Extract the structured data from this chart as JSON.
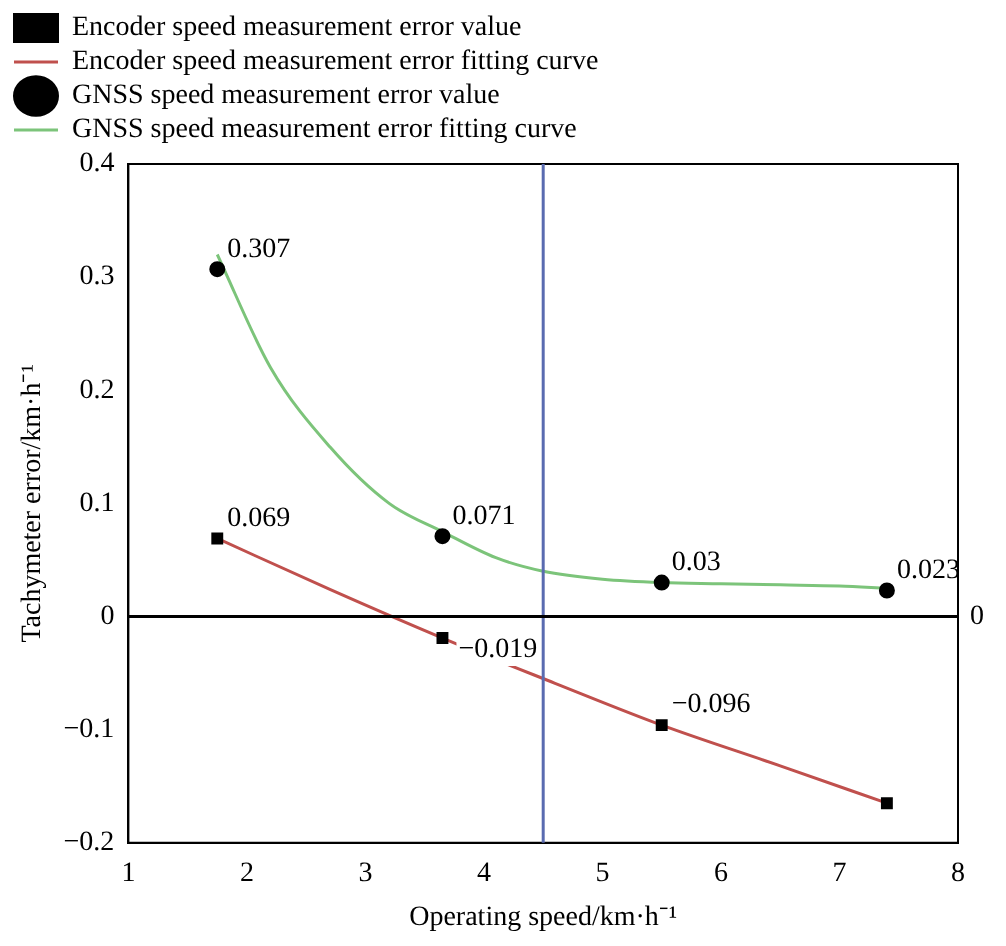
{
  "chart_data": {
    "type": "scatter",
    "xlabel": "Operating speed/km·h⁻¹",
    "ylabel": "Tachymeter error/km·h⁻¹",
    "xlim": [
      1,
      8
    ],
    "xticks": [
      1,
      2,
      3,
      4,
      5,
      6,
      7,
      8
    ],
    "ylim": [
      -0.2,
      0.4
    ],
    "yticks": [
      {
        "value": -0.2,
        "label": "−0.2"
      },
      {
        "value": -0.1,
        "label": "−0.1"
      },
      0,
      0.1,
      0.2,
      0.3,
      0.4
    ],
    "grid": false,
    "legend": "top",
    "ref_lines": [
      {
        "axis": "x",
        "value": 4.5,
        "label": null,
        "color": "#5a6bb0"
      },
      {
        "axis": "y",
        "value": 0,
        "label": "0",
        "color": "#000000"
      }
    ],
    "series": [
      {
        "name": "Encoder speed measurement error value",
        "marker": "square",
        "color": "#000000",
        "x": [
          1.75,
          3.65,
          5.5,
          7.4
        ],
        "values": [
          0.069,
          -0.019,
          -0.096,
          -0.165
        ],
        "value_labels": [
          "0.069",
          "−0.019",
          "−0.096",
          null
        ]
      },
      {
        "name": "Encoder speed measurement error fitting curve",
        "type": "line",
        "marker": "none",
        "color": "#c0504d",
        "x": [
          1.75,
          2.7,
          3.65,
          4.6,
          5.5,
          6.5,
          7.4
        ],
        "values": [
          0.069,
          0.024,
          -0.019,
          -0.059,
          -0.096,
          -0.132,
          -0.165
        ]
      },
      {
        "name": "GNSS speed measurement error value",
        "marker": "circle",
        "color": "#000000",
        "x": [
          1.75,
          3.65,
          5.5,
          7.4
        ],
        "values": [
          0.307,
          0.071,
          0.03,
          0.023
        ],
        "value_labels": [
          "0.307",
          "0.071",
          "0.03",
          "0.023"
        ]
      },
      {
        "name": "GNSS speed measurement error fitting curve",
        "type": "line",
        "marker": "none",
        "color": "#7cc47a",
        "x": [
          1.75,
          2.2,
          2.7,
          3.2,
          3.65,
          4.1,
          4.5,
          5,
          5.5,
          6,
          6.5,
          7,
          7.4
        ],
        "values": [
          0.32,
          0.22,
          0.15,
          0.1,
          0.075,
          0.052,
          0.04,
          0.033,
          0.03,
          0.029,
          0.028,
          0.027,
          0.025
        ]
      }
    ]
  }
}
